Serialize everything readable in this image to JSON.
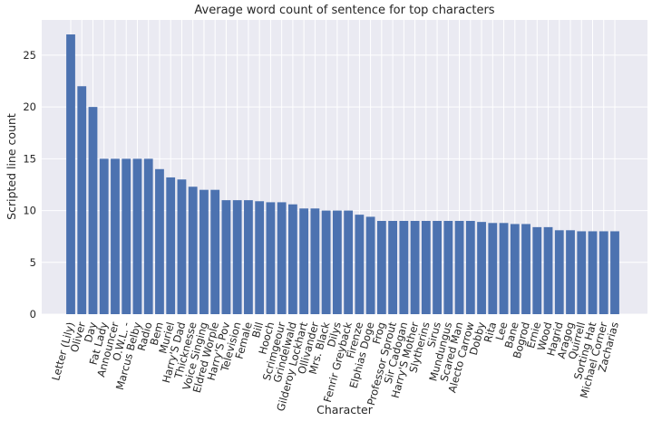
{
  "chart_data": {
    "type": "bar",
    "title": "Average word count of sentence for top characters",
    "xlabel": "Character",
    "ylabel": "Scripted line count",
    "ylim": [
      0,
      28.4
    ],
    "yticks": [
      0,
      5,
      10,
      15,
      20,
      25
    ],
    "grid": true,
    "categories": [
      "Letter (Lily)",
      "Oliver",
      "Day",
      "Fat Lady",
      "Announcer",
      "O.W.L. -",
      "Marcus Belby",
      "Radio",
      "Bem",
      "Muriel",
      "Harry'S Dad",
      "Thicknesse",
      "Voice Singing",
      "Eldred Worple",
      "Harry'S Pov",
      "Television",
      "Female",
      "Bill",
      "Hooch",
      "Scrimgeour",
      "Grindelwald",
      "Gilderoy Lockhart",
      "Ollivander",
      "Mrs. Black",
      "Dilys",
      "Fenrir Greyback",
      "Firenze",
      "Elphias Doge",
      "Frog",
      "Professor Sprout",
      "Sir Cadogan",
      "Harry'S Mother",
      "Slytherins",
      "Sirus",
      "Mundungus",
      "Scared Man",
      "Alecto Carrow",
      "Dobby",
      "Rita",
      "Lee",
      "Bane",
      "Bogrod",
      "Ernie",
      "Wood",
      "Hagrid",
      "Aragog",
      "Quirrell",
      "Sorting Hat",
      "Michael Corner",
      "Zacharias"
    ],
    "values": [
      27.0,
      22.0,
      20.0,
      15.0,
      15.0,
      15.0,
      15.0,
      15.0,
      14.0,
      13.2,
      13.0,
      12.3,
      12.0,
      12.0,
      11.0,
      11.0,
      11.0,
      10.9,
      10.8,
      10.8,
      10.6,
      10.2,
      10.2,
      10.0,
      10.0,
      10.0,
      9.6,
      9.4,
      9.0,
      9.0,
      9.0,
      9.0,
      9.0,
      9.0,
      9.0,
      9.0,
      9.0,
      8.9,
      8.8,
      8.8,
      8.7,
      8.7,
      8.4,
      8.4,
      8.1,
      8.1,
      8.0,
      8.0,
      8.0,
      8.0
    ],
    "colors": {
      "bar": "#4c72b0",
      "plot_bg": "#eaeaf2",
      "grid": "#ffffff"
    }
  }
}
